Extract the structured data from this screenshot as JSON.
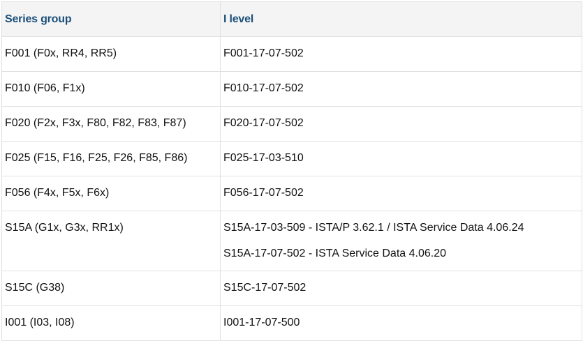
{
  "table": {
    "headers": [
      "Series group",
      "I level"
    ],
    "rows": [
      {
        "series": "F001 (F0x, RR4, RR5)",
        "levels": [
          "F001-17-07-502"
        ]
      },
      {
        "series": "F010 (F06, F1x)",
        "levels": [
          "F010-17-07-502"
        ]
      },
      {
        "series": "F020 (F2x, F3x, F80, F82, F83, F87)",
        "levels": [
          "F020-17-07-502"
        ]
      },
      {
        "series": "F025 (F15, F16, F25, F26, F85, F86)",
        "levels": [
          "F025-17-03-510"
        ]
      },
      {
        "series": "F056 (F4x, F5x, F6x)",
        "levels": [
          "F056-17-07-502"
        ]
      },
      {
        "series": "S15A (G1x, G3x, RR1x)",
        "levels": [
          "S15A-17-03-509 - ISTA/P 3.62.1 / ISTA Service Data 4.06.24",
          "S15A-17-07-502 - ISTA Service Data 4.06.20"
        ]
      },
      {
        "series": "S15C (G38)",
        "levels": [
          "S15C-17-07-502"
        ]
      },
      {
        "series": "I001 (I03, I08)",
        "levels": [
          "I001-17-07-500"
        ]
      }
    ]
  }
}
